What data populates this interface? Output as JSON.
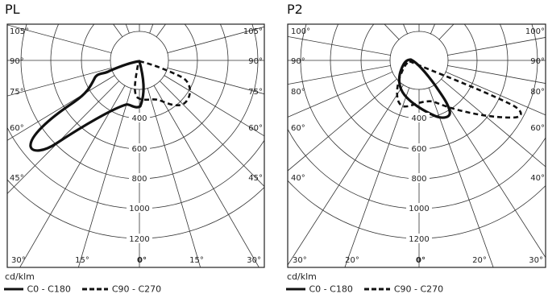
{
  "panels": [
    {
      "title": "PL",
      "angle_labels_left": [
        "105°",
        "90°",
        "75°",
        "60°",
        "45°",
        "30°"
      ],
      "angle_labels_right": [
        "105°",
        "90°",
        "75°",
        "60°",
        "45°",
        "30°"
      ],
      "bottom_angle_labels": [
        "15°",
        "0°",
        "15°"
      ],
      "radial_labels": [
        "400",
        "600",
        "800",
        "1000",
        "1200"
      ]
    },
    {
      "title": "P2",
      "angle_labels_left": [
        "100°",
        "90°",
        "80°",
        "60°",
        "40°",
        "30°"
      ],
      "angle_labels_right": [
        "100°",
        "90°",
        "80°",
        "60°",
        "40°",
        "30°"
      ],
      "bottom_angle_labels": [
        "20°",
        "0°",
        "20°"
      ],
      "radial_labels": [
        "400",
        "600",
        "800",
        "1000",
        "1200"
      ]
    }
  ],
  "unit_label": "cd/klm",
  "legend": {
    "c0_label": "C0 - C180",
    "c90_label": "C90 - C270"
  },
  "colors": {
    "grid": "#333333",
    "curve": "#111111",
    "frame": "#222222"
  }
}
